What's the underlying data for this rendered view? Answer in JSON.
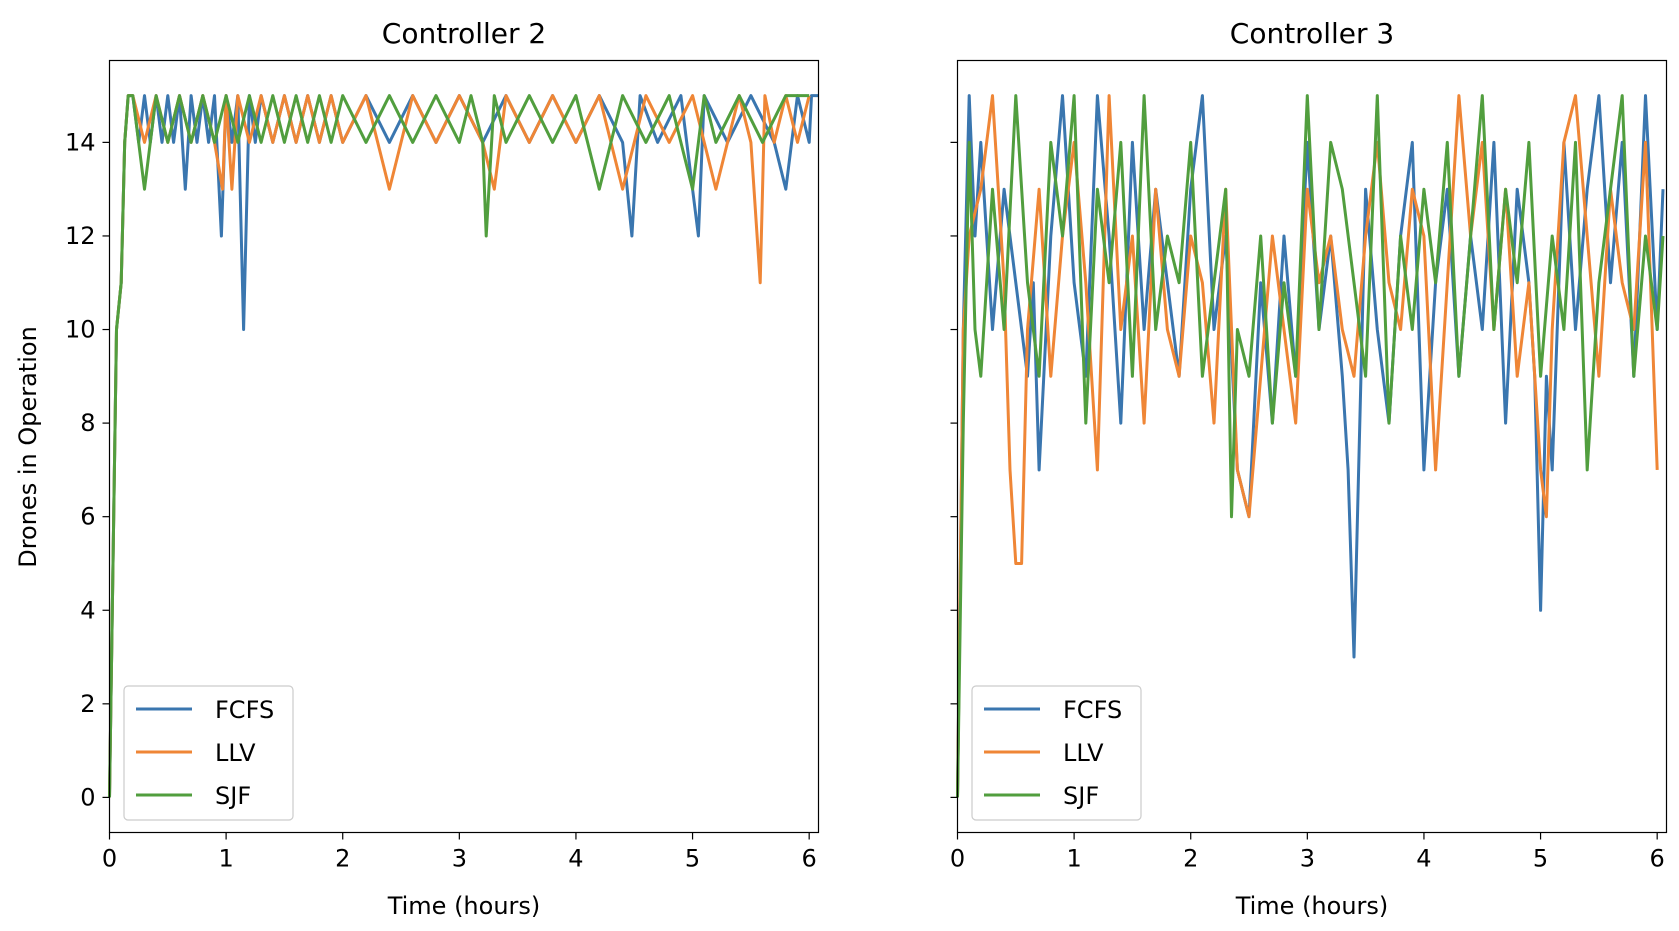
{
  "figure": {
    "ylabel": "Drones in Operation"
  },
  "chart_data": [
    {
      "type": "line",
      "title": "Controller 2",
      "xlabel": "Time (hours)",
      "ylabel": "Drones in Operation",
      "xlim": [
        0,
        6.08
      ],
      "ylim": [
        -0.75,
        15.75
      ],
      "xticks": [
        0,
        1,
        2,
        3,
        4,
        5,
        6
      ],
      "yticks": [
        0,
        2,
        4,
        6,
        8,
        10,
        12,
        14
      ],
      "grid": false,
      "legend": "lower-left",
      "series": [
        {
          "name": "FCFS",
          "color": "#3a76af",
          "x": [
            0,
            0.06,
            0.1,
            0.13,
            0.16,
            0.2,
            0.25,
            0.3,
            0.35,
            0.4,
            0.45,
            0.5,
            0.55,
            0.6,
            0.65,
            0.7,
            0.75,
            0.8,
            0.85,
            0.9,
            0.92,
            0.96,
            1.0,
            1.05,
            1.1,
            1.15,
            1.2,
            1.25,
            1.3,
            1.4,
            1.5,
            1.6,
            1.7,
            1.8,
            1.9,
            2.0,
            2.2,
            2.4,
            2.6,
            2.8,
            3.0,
            3.2,
            3.4,
            3.6,
            3.8,
            4.0,
            4.2,
            4.4,
            4.48,
            4.55,
            4.7,
            4.9,
            5.05,
            5.1,
            5.3,
            5.5,
            5.7,
            5.8,
            5.9,
            6.0,
            6.02,
            6.08
          ],
          "values": [
            0,
            10,
            11,
            14,
            15,
            15,
            14,
            15,
            14,
            15,
            14,
            15,
            14,
            15,
            13,
            15,
            14,
            15,
            14,
            15,
            14,
            12,
            15,
            14,
            15,
            10,
            15,
            14,
            15,
            14,
            15,
            14,
            15,
            14,
            15,
            14,
            15,
            14,
            15,
            14,
            15,
            14,
            15,
            14,
            15,
            14,
            15,
            14,
            12,
            15,
            14,
            15,
            12,
            15,
            14,
            15,
            14,
            13,
            15,
            14,
            15,
            15
          ]
        },
        {
          "name": "LLV",
          "color": "#ef8636",
          "x": [
            0,
            0.06,
            0.1,
            0.13,
            0.16,
            0.2,
            0.3,
            0.4,
            0.5,
            0.6,
            0.7,
            0.8,
            0.9,
            0.97,
            1.0,
            1.05,
            1.1,
            1.2,
            1.3,
            1.4,
            1.5,
            1.6,
            1.7,
            1.8,
            1.9,
            2.0,
            2.2,
            2.4,
            2.6,
            2.8,
            3.0,
            3.2,
            3.3,
            3.4,
            3.6,
            3.8,
            4.0,
            4.2,
            4.4,
            4.6,
            4.8,
            5.0,
            5.2,
            5.4,
            5.5,
            5.58,
            5.62,
            5.7,
            5.8,
            5.9,
            6.0
          ],
          "values": [
            0,
            10,
            11,
            14,
            15,
            15,
            14,
            15,
            14,
            15,
            14,
            15,
            14,
            13,
            15,
            13,
            15,
            14,
            15,
            14,
            15,
            14,
            15,
            14,
            15,
            14,
            15,
            13,
            15,
            14,
            15,
            14,
            13,
            15,
            14,
            15,
            14,
            15,
            13,
            15,
            14,
            15,
            13,
            15,
            14,
            11,
            15,
            14,
            15,
            14,
            15
          ]
        },
        {
          "name": "SJF",
          "color": "#519e3e",
          "x": [
            0,
            0.06,
            0.1,
            0.13,
            0.16,
            0.2,
            0.3,
            0.4,
            0.5,
            0.6,
            0.7,
            0.8,
            0.9,
            1.0,
            1.1,
            1.2,
            1.3,
            1.4,
            1.5,
            1.6,
            1.7,
            1.8,
            1.9,
            2.0,
            2.2,
            2.4,
            2.6,
            2.8,
            3.0,
            3.1,
            3.2,
            3.23,
            3.3,
            3.4,
            3.6,
            3.8,
            4.0,
            4.2,
            4.4,
            4.6,
            4.8,
            5.0,
            5.1,
            5.2,
            5.4,
            5.6,
            5.8,
            6.0
          ],
          "values": [
            0,
            10,
            11,
            14,
            15,
            15,
            13,
            15,
            14,
            15,
            14,
            15,
            14,
            15,
            14,
            15,
            14,
            15,
            14,
            15,
            14,
            15,
            14,
            15,
            14,
            15,
            14,
            15,
            14,
            15,
            14,
            12,
            15,
            14,
            15,
            14,
            15,
            13,
            15,
            14,
            15,
            13,
            15,
            14,
            15,
            14,
            15,
            15
          ]
        }
      ]
    },
    {
      "type": "line",
      "title": "Controller 3",
      "xlabel": "Time (hours)",
      "xlim": [
        0,
        6.08
      ],
      "ylim": [
        -0.75,
        15.75
      ],
      "xticks": [
        0,
        1,
        2,
        3,
        4,
        5,
        6
      ],
      "yticks": [
        0,
        2,
        4,
        6,
        8,
        10,
        12,
        14
      ],
      "grid": false,
      "legend": "lower-left",
      "series": [
        {
          "name": "FCFS",
          "color": "#3a76af",
          "x": [
            0,
            0.05,
            0.1,
            0.15,
            0.2,
            0.3,
            0.4,
            0.5,
            0.6,
            0.65,
            0.7,
            0.8,
            0.9,
            1.0,
            1.1,
            1.2,
            1.3,
            1.4,
            1.5,
            1.6,
            1.7,
            1.8,
            1.9,
            2.0,
            2.1,
            2.2,
            2.3,
            2.4,
            2.5,
            2.6,
            2.7,
            2.8,
            2.9,
            3.0,
            3.1,
            3.2,
            3.3,
            3.35,
            3.4,
            3.5,
            3.6,
            3.7,
            3.8,
            3.9,
            4.0,
            4.1,
            4.2,
            4.3,
            4.4,
            4.5,
            4.6,
            4.7,
            4.8,
            4.9,
            4.95,
            5.0,
            5.05,
            5.1,
            5.2,
            5.3,
            5.4,
            5.5,
            5.6,
            5.7,
            5.8,
            5.9,
            6.0,
            6.05
          ],
          "values": [
            0,
            10,
            15,
            12,
            14,
            10,
            13,
            11,
            9,
            11,
            7,
            12,
            15,
            11,
            9,
            15,
            12,
            8,
            14,
            10,
            13,
            11,
            9,
            13,
            15,
            10,
            12,
            7,
            6,
            11,
            8,
            12,
            9,
            14,
            10,
            12,
            9,
            7,
            3,
            13,
            10,
            8,
            12,
            14,
            7,
            11,
            13,
            9,
            12,
            10,
            14,
            8,
            13,
            11,
            9,
            4,
            9,
            7,
            14,
            10,
            13,
            15,
            11,
            14,
            9,
            15,
            10,
            13
          ]
        },
        {
          "name": "LLV",
          "color": "#ef8636",
          "x": [
            0,
            0.05,
            0.1,
            0.2,
            0.3,
            0.4,
            0.45,
            0.5,
            0.55,
            0.6,
            0.7,
            0.8,
            0.9,
            1.0,
            1.1,
            1.2,
            1.3,
            1.4,
            1.5,
            1.6,
            1.7,
            1.8,
            1.9,
            2.0,
            2.1,
            2.2,
            2.3,
            2.4,
            2.5,
            2.6,
            2.7,
            2.8,
            2.9,
            3.0,
            3.1,
            3.2,
            3.3,
            3.4,
            3.5,
            3.6,
            3.7,
            3.8,
            3.9,
            4.0,
            4.1,
            4.2,
            4.3,
            4.4,
            4.5,
            4.6,
            4.7,
            4.8,
            4.9,
            5.0,
            5.05,
            5.1,
            5.2,
            5.3,
            5.4,
            5.5,
            5.6,
            5.7,
            5.8,
            5.9,
            6.0
          ],
          "values": [
            0,
            10,
            12,
            13,
            15,
            11,
            7,
            5,
            5,
            10,
            13,
            9,
            12,
            14,
            11,
            7,
            15,
            10,
            12,
            8,
            13,
            10,
            9,
            12,
            11,
            8,
            13,
            7,
            6,
            9,
            12,
            10,
            8,
            13,
            11,
            12,
            10,
            9,
            12,
            14,
            11,
            10,
            13,
            12,
            7,
            11,
            15,
            12,
            14,
            10,
            13,
            9,
            11,
            7,
            6,
            10,
            14,
            15,
            12,
            9,
            13,
            11,
            10,
            14,
            7
          ]
        },
        {
          "name": "SJF",
          "color": "#519e3e",
          "x": [
            0,
            0.05,
            0.1,
            0.15,
            0.2,
            0.3,
            0.4,
            0.5,
            0.6,
            0.7,
            0.8,
            0.9,
            1.0,
            1.1,
            1.2,
            1.3,
            1.4,
            1.5,
            1.6,
            1.7,
            1.8,
            1.9,
            2.0,
            2.1,
            2.2,
            2.3,
            2.35,
            2.4,
            2.5,
            2.6,
            2.7,
            2.8,
            2.9,
            3.0,
            3.1,
            3.2,
            3.3,
            3.4,
            3.5,
            3.6,
            3.7,
            3.8,
            3.9,
            4.0,
            4.1,
            4.2,
            4.3,
            4.4,
            4.5,
            4.6,
            4.7,
            4.8,
            4.9,
            5.0,
            5.1,
            5.2,
            5.3,
            5.4,
            5.5,
            5.6,
            5.7,
            5.8,
            5.9,
            6.0,
            6.05
          ],
          "values": [
            0,
            8,
            14,
            10,
            9,
            13,
            10,
            15,
            11,
            9,
            14,
            12,
            15,
            8,
            13,
            11,
            14,
            9,
            15,
            10,
            12,
            11,
            14,
            9,
            11,
            13,
            6,
            10,
            9,
            12,
            8,
            11,
            9,
            15,
            10,
            14,
            13,
            11,
            9,
            15,
            8,
            12,
            10,
            13,
            11,
            14,
            9,
            12,
            15,
            10,
            13,
            11,
            14,
            9,
            12,
            10,
            14,
            7,
            11,
            13,
            15,
            9,
            12,
            10,
            12
          ]
        }
      ]
    }
  ]
}
